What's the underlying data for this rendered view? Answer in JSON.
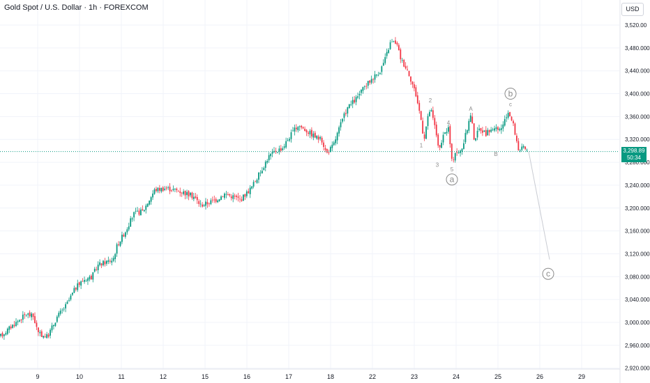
{
  "header": {
    "symbol_title": "Gold Spot / U.S. Dollar · 1h · FOREXCOM",
    "currency": "USD"
  },
  "price_badge": {
    "price": "3,298.89",
    "countdown": "50:34"
  },
  "chart_data": {
    "type": "candlestick",
    "title": "Gold Spot / U.S. Dollar · 1h · FOREXCOM",
    "currency": "USD",
    "last_price": 3298.89,
    "y_ticks": [
      "3,520.00",
      "3,480.000",
      "3,440.000",
      "3,400.000",
      "3,360.000",
      "3,320.000",
      "3,280.000",
      "3,240.000",
      "3,200.000",
      "3,160.000",
      "3,120.000",
      "3,080.000",
      "3,040.000",
      "3,000.000",
      "2,960.000",
      "2,920.000"
    ],
    "y_values": [
      3520,
      3480,
      3440,
      3400,
      3360,
      3320,
      3280,
      3240,
      3200,
      3160,
      3120,
      3080,
      3040,
      3000,
      2960,
      2920
    ],
    "x_ticks": [
      "9",
      "10",
      "11",
      "12",
      "15",
      "16",
      "17",
      "18",
      "22",
      "23",
      "24",
      "25",
      "26",
      "29"
    ],
    "x_tick_slots": [
      54,
      114,
      174,
      234,
      294,
      354,
      414,
      474,
      534,
      594,
      654,
      714,
      774,
      834
    ],
    "ylim": [
      2920,
      3540
    ],
    "colors": {
      "up": "#089981",
      "down": "#f23645",
      "price_line": "#089981",
      "annotation": "#8a8a8a"
    },
    "candle_path": [
      [
        0,
        2975
      ],
      [
        18,
        2995
      ],
      [
        38,
        3015
      ],
      [
        48,
        3010
      ],
      [
        55,
        2980
      ],
      [
        68,
        2975
      ],
      [
        72,
        2985
      ],
      [
        82,
        3010
      ],
      [
        95,
        3030
      ],
      [
        108,
        3060
      ],
      [
        120,
        3075
      ],
      [
        132,
        3080
      ],
      [
        140,
        3100
      ],
      [
        150,
        3105
      ],
      [
        162,
        3110
      ],
      [
        168,
        3135
      ],
      [
        180,
        3160
      ],
      [
        192,
        3190
      ],
      [
        205,
        3195
      ],
      [
        222,
        3232
      ],
      [
        238,
        3235
      ],
      [
        250,
        3232
      ],
      [
        262,
        3228
      ],
      [
        278,
        3220
      ],
      [
        288,
        3205
      ],
      [
        300,
        3210
      ],
      [
        310,
        3215
      ],
      [
        322,
        3225
      ],
      [
        335,
        3220
      ],
      [
        345,
        3215
      ],
      [
        360,
        3235
      ],
      [
        372,
        3260
      ],
      [
        385,
        3290
      ],
      [
        395,
        3300
      ],
      [
        405,
        3305
      ],
      [
        418,
        3330
      ],
      [
        428,
        3345
      ],
      [
        440,
        3335
      ],
      [
        452,
        3325
      ],
      [
        462,
        3318
      ],
      [
        468,
        3295
      ],
      [
        478,
        3310
      ],
      [
        488,
        3345
      ],
      [
        498,
        3375
      ],
      [
        510,
        3390
      ],
      [
        522,
        3410
      ],
      [
        532,
        3425
      ],
      [
        545,
        3440
      ],
      [
        552,
        3460
      ],
      [
        560,
        3490
      ],
      [
        568,
        3490
      ],
      [
        575,
        3460
      ],
      [
        585,
        3440
      ],
      [
        596,
        3400
      ],
      [
        603,
        3360
      ],
      [
        608,
        3320
      ],
      [
        612,
        3350
      ],
      [
        617,
        3375
      ],
      [
        624,
        3340
      ],
      [
        630,
        3300
      ],
      [
        637,
        3330
      ],
      [
        643,
        3340
      ],
      [
        648,
        3280
      ],
      [
        653,
        3300
      ],
      [
        658,
        3295
      ],
      [
        664,
        3310
      ],
      [
        668,
        3330
      ],
      [
        675,
        3365
      ],
      [
        680,
        3320
      ],
      [
        688,
        3340
      ],
      [
        697,
        3330
      ],
      [
        706,
        3340
      ],
      [
        715,
        3335
      ],
      [
        722,
        3345
      ],
      [
        729,
        3370
      ],
      [
        736,
        3345
      ],
      [
        744,
        3300
      ],
      [
        750,
        3305
      ],
      [
        758,
        3298.89
      ]
    ],
    "projection": {
      "from": [
        758,
        3298.89
      ],
      "to": [
        788,
        3110
      ]
    },
    "wave_labels": [
      {
        "text": "1",
        "x": 604,
        "y": 3306
      },
      {
        "text": "2",
        "x": 617,
        "y": 3385
      },
      {
        "text": "3",
        "x": 627,
        "y": 3272
      },
      {
        "text": "4",
        "x": 643,
        "y": 3346
      },
      {
        "text": "5",
        "x": 648,
        "y": 3264
      },
      {
        "text": "A",
        "x": 675,
        "y": 3370
      },
      {
        "text": "B",
        "x": 711,
        "y": 3291
      },
      {
        "text": "c",
        "x": 732,
        "y": 3378
      }
    ],
    "circled_labels": [
      {
        "text": "a",
        "x": 648,
        "y": 3250
      },
      {
        "text": "b",
        "x": 732,
        "y": 3400
      },
      {
        "text": "c",
        "x": 786,
        "y": 3085
      }
    ]
  }
}
